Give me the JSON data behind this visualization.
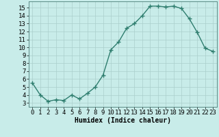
{
  "x": [
    0,
    1,
    2,
    3,
    4,
    5,
    6,
    7,
    8,
    9,
    10,
    11,
    12,
    13,
    14,
    15,
    16,
    17,
    18,
    19,
    20,
    21,
    22,
    23
  ],
  "y": [
    5.5,
    4.0,
    3.2,
    3.4,
    3.3,
    4.0,
    3.5,
    4.2,
    5.0,
    6.5,
    9.7,
    10.7,
    12.4,
    13.0,
    14.0,
    15.2,
    15.2,
    15.1,
    15.2,
    14.9,
    13.6,
    11.9,
    9.9,
    9.5
  ],
  "line_color": "#2e7d6e",
  "marker": "+",
  "markersize": 4,
  "linewidth": 1.0,
  "bg_color": "#c8ece9",
  "grid_color": "#aacfcc",
  "xlabel": "Humidex (Indice chaleur)",
  "xlim": [
    -0.5,
    23.5
  ],
  "ylim": [
    2.5,
    15.8
  ],
  "yticks": [
    3,
    4,
    5,
    6,
    7,
    8,
    9,
    10,
    11,
    12,
    13,
    14,
    15
  ],
  "xticks": [
    0,
    1,
    2,
    3,
    4,
    5,
    6,
    7,
    8,
    9,
    10,
    11,
    12,
    13,
    14,
    15,
    16,
    17,
    18,
    19,
    20,
    21,
    22,
    23
  ],
  "xlabel_fontsize": 7,
  "tick_fontsize": 6.5
}
